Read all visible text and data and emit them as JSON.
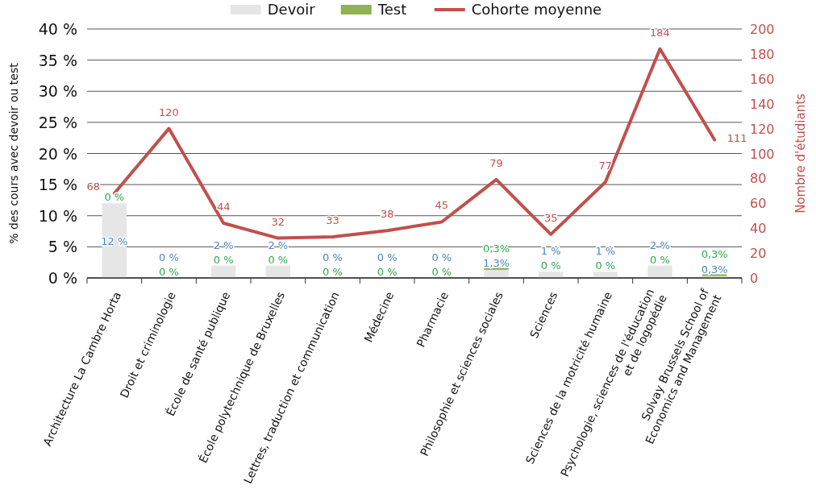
{
  "chart_data": {
    "type": "bar",
    "stacked": true,
    "categories": [
      "Architecture La Cambre Horta",
      "Droit et criminologie",
      "École de santé publique",
      "École polytechnique de Bruxelles",
      "Lettres, traduction et communication",
      "Médecine",
      "Pharmacie",
      "Philosophie et sciences sociales",
      "Sciences",
      "Sciences de la motricité humaine",
      "Psychologie, sciences de l'éducation\net de logopédie",
      "Solvay Brussels School of\nEconomics and Management"
    ],
    "ylabel": "% des cours avec devoir ou test",
    "y2label": "Nombre d'étudiants",
    "ylim": [
      0,
      40
    ],
    "yticks": [
      {
        "value": 0,
        "label": "0 %"
      },
      {
        "value": 5,
        "label": "5 %"
      },
      {
        "value": 10,
        "label": "10 %"
      },
      {
        "value": 15,
        "label": "15 %"
      },
      {
        "value": 20,
        "label": "20 %"
      },
      {
        "value": 25,
        "label": "25 %"
      },
      {
        "value": 30,
        "label": "30 %"
      },
      {
        "value": 35,
        "label": "35 %"
      },
      {
        "value": 40,
        "label": "40 %"
      }
    ],
    "y2lim": [
      0,
      200
    ],
    "y2ticks": [
      0,
      20,
      40,
      60,
      80,
      100,
      120,
      140,
      160,
      180,
      200
    ],
    "grid": "y",
    "legend": "top",
    "marker": "none",
    "series": [
      {
        "name": "Devoir",
        "color": "#e6e6e6",
        "values": [
          12,
          0,
          2,
          2,
          0,
          0,
          0,
          1.3,
          1,
          1,
          2,
          0.3
        ],
        "value_labels": [
          "12 %",
          "0 %",
          "2 %",
          "2 %",
          "0 %",
          "0 %",
          "0 %",
          "1,3%",
          "1 %",
          "1 %",
          "2 %",
          "0,3%"
        ]
      },
      {
        "name": "Test",
        "color": "#8fb353",
        "values": [
          0,
          0,
          0,
          0,
          0,
          0,
          0,
          0.3,
          0,
          0,
          0,
          0.3
        ],
        "value_labels": [
          "0 %",
          "0 %",
          "0 %",
          "0 %",
          "0 %",
          "0 %",
          "0 %",
          "0,3%",
          "0 %",
          "0 %",
          "0 %",
          "0,3%"
        ]
      },
      {
        "name": "Cohorte moyenne",
        "type": "line",
        "axis": "y2",
        "color": "#c0504d",
        "values": [
          68,
          120,
          44,
          32,
          33,
          38,
          45,
          79,
          35,
          77,
          184,
          111
        ],
        "value_labels": [
          "68",
          "120",
          "44",
          "32",
          "33",
          "38",
          "45",
          "79",
          "35",
          "77",
          "184",
          "111"
        ]
      }
    ]
  }
}
